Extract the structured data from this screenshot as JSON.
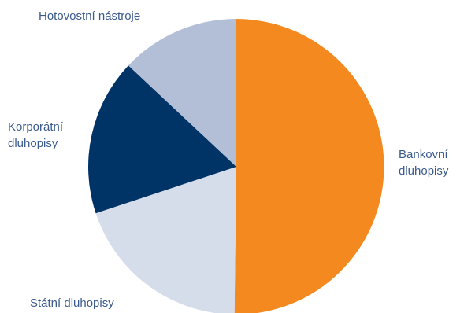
{
  "chart_data": {
    "type": "pie",
    "start_angle_deg": 0,
    "direction": "clockwise",
    "slices": [
      {
        "label_lines": [
          "Bankovní",
          "dluhopisy"
        ],
        "value": 50.2,
        "color": "#f4891f"
      },
      {
        "label_lines": [
          "Státní dluhopisy"
        ],
        "value": 19.7,
        "color": "#d5dcea"
      },
      {
        "label_lines": [
          "Korporátní",
          "dluhopisy"
        ],
        "value": 17.1,
        "color": "#003366"
      },
      {
        "label_lines": [
          "Hotovostní nástroje"
        ],
        "value": 13.0,
        "color": "#b3bfd6"
      }
    ],
    "legend": "none",
    "label_color": "#3a5a8c"
  }
}
